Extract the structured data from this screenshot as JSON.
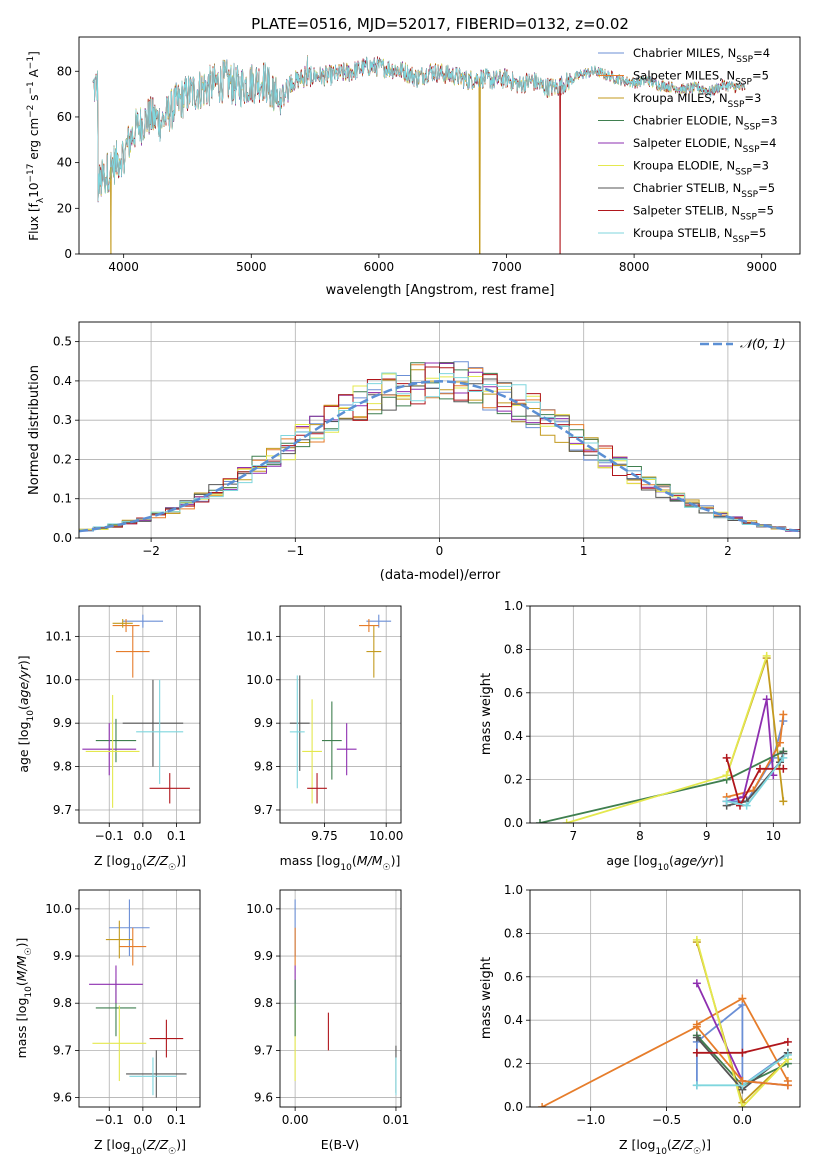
{
  "figure": {
    "title": "PLATE=0516, MJD=52017, FIBERID=0132, z=0.02"
  },
  "colors": {
    "Chabrier MILES": "#6b8fd6",
    "Salpeter MILES": "#e67d2b",
    "Kroupa MILES": "#c39a1e",
    "Chabrier ELODIE": "#3f7f4f",
    "Salpeter ELODIE": "#8e2fb0",
    "Kroupa ELODIE": "#e4e84e",
    "Chabrier STELIB": "#555555",
    "Salpeter STELIB": "#b0161c",
    "Kroupa STELIB": "#7fd6de",
    "normal_curve": "#5b8fd4",
    "grid": "#b0b0b0"
  },
  "chart_data": [
    {
      "id": "spectrum",
      "type": "line",
      "title": "PLATE=0516, MJD=52017, FIBERID=0132, z=0.02",
      "xlabel": "wavelength [Angstrom, rest frame]",
      "ylabel": "Flux [f_λ 10^-17 erg cm^-2 s^-1 A^-1]",
      "xlim": [
        3650,
        9300
      ],
      "ylim": [
        0,
        95
      ],
      "xticks": [
        4000,
        5000,
        6000,
        7000,
        8000,
        9000
      ],
      "yticks": [
        0,
        20,
        40,
        60,
        80
      ],
      "grid": false,
      "legend_position": "top-right",
      "legend": [
        {
          "label": "Chabrier MILES",
          "nssp": "4"
        },
        {
          "label": "Salpeter MILES",
          "nssp": "5"
        },
        {
          "label": "Kroupa MILES",
          "nssp": "3"
        },
        {
          "label": "Chabrier ELODIE",
          "nssp": "3"
        },
        {
          "label": "Salpeter ELODIE",
          "nssp": "4"
        },
        {
          "label": "Kroupa ELODIE",
          "nssp": "3"
        },
        {
          "label": "Chabrier STELIB",
          "nssp": "5"
        },
        {
          "label": "Salpeter STELIB",
          "nssp": "5"
        },
        {
          "label": "Kroupa STELIB",
          "nssp": "5"
        }
      ],
      "continuum": {
        "x": [
          3800,
          3900,
          4000,
          4050,
          4100,
          4200,
          4300,
          4400,
          4500,
          4600,
          4700,
          4800,
          4900,
          5000,
          5100,
          5200,
          5300,
          5400,
          5500,
          5600,
          5700,
          5800,
          5900,
          6000,
          6100,
          6200,
          6300,
          6400,
          6500,
          6600,
          6700,
          6800,
          6900,
          7000,
          7100,
          7200,
          7300,
          7400,
          7500,
          7600,
          7700,
          7800,
          7900,
          8000,
          8100,
          8200,
          8300,
          8400,
          8500,
          8600,
          8700,
          8800
        ],
        "y": [
          30,
          38,
          44,
          50,
          55,
          60,
          58,
          65,
          70,
          72,
          74,
          76,
          73,
          75,
          76,
          68,
          75,
          77,
          78,
          78,
          79,
          80,
          82,
          82,
          81,
          80,
          77,
          80,
          79,
          78,
          76,
          77,
          76,
          77,
          74,
          76,
          73,
          73,
          76,
          79,
          80,
          78,
          76,
          75,
          76,
          74,
          73,
          72,
          73,
          71,
          74,
          73
        ]
      },
      "drops": [
        {
          "x": 3900,
          "series": "Kroupa MILES"
        },
        {
          "x": 6790,
          "series": "Kroupa MILES"
        },
        {
          "x": 7420,
          "series": "Salpeter STELIB"
        }
      ]
    },
    {
      "id": "residuals",
      "type": "bar",
      "xlabel": "(data-model)/error",
      "ylabel": "Normed distribution",
      "xlim": [
        -2.5,
        2.5
      ],
      "ylim": [
        0,
        0.55
      ],
      "xticks": [
        -2,
        -1,
        0,
        1,
        2
      ],
      "yticks": [
        0.0,
        0.1,
        0.2,
        0.3,
        0.4,
        0.5
      ],
      "grid": true,
      "legend_position": "top-right",
      "legend": [
        {
          "label": "𝒩(0, 1)",
          "style": "dashed"
        }
      ],
      "bin_width": 0.1,
      "bin_start": -2.5
    },
    {
      "id": "age-vs-Z",
      "type": "scatter",
      "xlabel": "Z [log10(Z/Z☉)]",
      "ylabel": "age [log10(age/yr)]",
      "xlim": [
        -0.19,
        0.17
      ],
      "ylim": [
        9.67,
        10.17
      ],
      "xticks": [
        -0.1,
        0.0,
        0.1
      ],
      "yticks": [
        9.7,
        9.8,
        9.9,
        10.0,
        10.1
      ],
      "grid": true,
      "points": [
        {
          "series": "Chabrier MILES",
          "x": 0.0,
          "xerr": 0.06,
          "y": 10.135,
          "yerr": 0.015
        },
        {
          "series": "Salpeter MILES",
          "x": -0.05,
          "xerr": 0.04,
          "y": 10.125,
          "yerr": 0.015
        },
        {
          "series": "Kroupa MILES",
          "x": -0.06,
          "xerr": 0.03,
          "y": 10.13,
          "yerr": 0.01
        },
        {
          "series": "Chabrier ELODIE",
          "x": -0.08,
          "xerr": 0.06,
          "y": 9.86,
          "yerr": 0.05
        },
        {
          "series": "Salpeter ELODIE",
          "x": -0.1,
          "xerr": 0.08,
          "y": 9.84,
          "yerr": 0.06
        },
        {
          "series": "Kroupa ELODIE",
          "x": -0.09,
          "xerr": 0.08,
          "y": 9.835,
          "yerr": 0.13
        },
        {
          "series": "Chabrier STELIB",
          "x": 0.03,
          "xerr": 0.09,
          "y": 9.9,
          "yerr": 0.1
        },
        {
          "series": "Salpeter STELIB",
          "x": 0.08,
          "xerr": 0.06,
          "y": 9.75,
          "yerr": 0.035
        },
        {
          "series": "Kroupa STELIB",
          "x": 0.05,
          "xerr": 0.07,
          "y": 9.88,
          "yerr": 0.12
        },
        {
          "series": "Salpeter MILES",
          "x": -0.03,
          "xerr": 0.05,
          "y": 10.065,
          "yerr": 0.06
        }
      ]
    },
    {
      "id": "age-vs-mass",
      "type": "scatter",
      "xlabel": "mass [log10(M/M☉)]",
      "ylabel": "",
      "xlim": [
        9.57,
        10.06
      ],
      "ylim": [
        9.67,
        10.17
      ],
      "xticks": [
        9.75,
        10.0
      ],
      "yticks": [
        9.7,
        9.8,
        9.9,
        10.0,
        10.1
      ],
      "grid": true,
      "points": [
        {
          "series": "Chabrier MILES",
          "x": 9.97,
          "xerr": 0.05,
          "y": 10.135,
          "yerr": 0.015
        },
        {
          "series": "Salpeter MILES",
          "x": 9.93,
          "xerr": 0.04,
          "y": 10.125,
          "yerr": 0.015
        },
        {
          "series": "Kroupa MILES",
          "x": 9.95,
          "xerr": 0.03,
          "y": 10.065,
          "yerr": 0.06
        },
        {
          "series": "Chabrier ELODIE",
          "x": 9.78,
          "xerr": 0.04,
          "y": 9.86,
          "yerr": 0.09
        },
        {
          "series": "Salpeter ELODIE",
          "x": 9.84,
          "xerr": 0.04,
          "y": 9.84,
          "yerr": 0.06
        },
        {
          "series": "Kroupa ELODIE",
          "x": 9.7,
          "xerr": 0.04,
          "y": 9.835,
          "yerr": 0.12
        },
        {
          "series": "Chabrier STELIB",
          "x": 9.65,
          "xerr": 0.04,
          "y": 9.9,
          "yerr": 0.11
        },
        {
          "series": "Salpeter STELIB",
          "x": 9.72,
          "xerr": 0.04,
          "y": 9.75,
          "yerr": 0.035
        },
        {
          "series": "Kroupa STELIB",
          "x": 9.64,
          "xerr": 0.03,
          "y": 9.88,
          "yerr": 0.13
        }
      ]
    },
    {
      "id": "mass-weight-vs-age",
      "type": "line",
      "xlabel": "age [log10(age/yr)]",
      "ylabel": "mass weight",
      "xlim": [
        6.35,
        10.4
      ],
      "ylim": [
        0,
        1.0
      ],
      "xticks": [
        7,
        8,
        9,
        10
      ],
      "yticks": [
        0.0,
        0.2,
        0.4,
        0.6,
        0.8,
        1.0
      ],
      "grid": true,
      "series": [
        {
          "name": "Chabrier MILES",
          "x": [
            9.3,
            9.6,
            10.0,
            10.15
          ],
          "y": [
            0.1,
            0.1,
            0.3,
            0.47
          ]
        },
        {
          "name": "Salpeter MILES",
          "x": [
            9.3,
            9.7,
            10.1,
            10.15
          ],
          "y": [
            0.12,
            0.15,
            0.37,
            0.5
          ]
        },
        {
          "name": "Kroupa MILES",
          "x": [
            9.3,
            9.9,
            10.15
          ],
          "y": [
            0.22,
            0.76,
            0.1
          ]
        },
        {
          "name": "Chabrier ELODIE",
          "x": [
            6.5,
            9.3,
            10.15
          ],
          "y": [
            0.0,
            0.2,
            0.33
          ]
        },
        {
          "name": "Salpeter ELODIE",
          "x": [
            9.3,
            9.55,
            9.9,
            10.0
          ],
          "y": [
            0.1,
            0.12,
            0.57,
            0.22
          ]
        },
        {
          "name": "Kroupa ELODIE",
          "x": [
            6.9,
            9.3,
            9.9
          ],
          "y": [
            0.0,
            0.22,
            0.77
          ]
        },
        {
          "name": "Chabrier STELIB",
          "x": [
            9.3,
            9.6,
            10.1,
            10.15
          ],
          "y": [
            0.08,
            0.1,
            0.28,
            0.32
          ]
        },
        {
          "name": "Salpeter STELIB",
          "x": [
            9.3,
            9.5,
            9.8,
            10.15
          ],
          "y": [
            0.3,
            0.08,
            0.25,
            0.25
          ]
        },
        {
          "name": "Kroupa STELIB",
          "x": [
            9.3,
            9.6,
            10.15
          ],
          "y": [
            0.1,
            0.08,
            0.3
          ]
        }
      ]
    },
    {
      "id": "mass-vs-Z",
      "type": "scatter",
      "xlabel": "Z [log10(Z/Z☉)]",
      "ylabel": "mass [log10(M/M☉)]",
      "xlim": [
        -0.19,
        0.17
      ],
      "ylim": [
        9.58,
        10.04
      ],
      "xticks": [
        -0.1,
        0.0,
        0.1
      ],
      "yticks": [
        9.6,
        9.7,
        9.8,
        9.9,
        10.0
      ],
      "grid": true,
      "points": [
        {
          "series": "Chabrier MILES",
          "x": -0.04,
          "xerr": 0.06,
          "y": 9.96,
          "yerr": 0.06
        },
        {
          "series": "Salpeter MILES",
          "x": -0.03,
          "xerr": 0.04,
          "y": 9.92,
          "yerr": 0.04
        },
        {
          "series": "Kroupa MILES",
          "x": -0.07,
          "xerr": 0.04,
          "y": 9.935,
          "yerr": 0.04
        },
        {
          "series": "Chabrier ELODIE",
          "x": -0.08,
          "xerr": 0.06,
          "y": 9.79,
          "yerr": 0.06
        },
        {
          "series": "Salpeter ELODIE",
          "x": -0.08,
          "xerr": 0.08,
          "y": 9.84,
          "yerr": 0.04
        },
        {
          "series": "Kroupa ELODIE",
          "x": -0.07,
          "xerr": 0.08,
          "y": 9.715,
          "yerr": 0.08
        },
        {
          "series": "Chabrier STELIB",
          "x": 0.04,
          "xerr": 0.09,
          "y": 9.65,
          "yerr": 0.05
        },
        {
          "series": "Salpeter STELIB",
          "x": 0.07,
          "xerr": 0.05,
          "y": 9.725,
          "yerr": 0.04
        },
        {
          "series": "Kroupa STELIB",
          "x": 0.03,
          "xerr": 0.07,
          "y": 9.645,
          "yerr": 0.04
        }
      ]
    },
    {
      "id": "mass-vs-ebv",
      "type": "scatter",
      "xlabel": "E(B-V)",
      "ylabel": "",
      "xlim": [
        -0.0015,
        0.0105
      ],
      "ylim": [
        9.58,
        10.04
      ],
      "xticks": [
        0.0,
        0.01
      ],
      "yticks": [
        9.6,
        9.7,
        9.8,
        9.9,
        10.0
      ],
      "grid": true,
      "points": [
        {
          "series": "Chabrier MILES",
          "x": 0.0,
          "xerr": 0.0,
          "y": 9.96,
          "yerr": 0.06
        },
        {
          "series": "Salpeter MILES",
          "x": 0.0,
          "xerr": 0.0,
          "y": 9.92,
          "yerr": 0.04
        },
        {
          "series": "Salpeter ELODIE",
          "x": 0.0,
          "xerr": 0.0,
          "y": 9.84,
          "yerr": 0.04
        },
        {
          "series": "Kroupa ELODIE",
          "x": 0.0,
          "xerr": 0.0,
          "y": 9.715,
          "yerr": 0.08
        },
        {
          "series": "Chabrier ELODIE",
          "x": 0.0,
          "xerr": 0.0,
          "y": 9.79,
          "yerr": 0.06
        },
        {
          "series": "Salpeter STELIB",
          "x": 0.0033,
          "xerr": 0.0,
          "y": 9.74,
          "yerr": 0.04
        },
        {
          "series": "Chabrier STELIB",
          "x": 0.01,
          "xerr": 0.0,
          "y": 9.66,
          "yerr": 0.05
        },
        {
          "series": "Kroupa STELIB",
          "x": 0.01,
          "xerr": 0.0,
          "y": 9.645,
          "yerr": 0.04
        }
      ]
    },
    {
      "id": "mass-weight-vs-Z",
      "type": "line",
      "xlabel": "Z [log10(Z/Z☉)]",
      "ylabel": "mass weight",
      "xlim": [
        -1.4,
        0.38
      ],
      "ylim": [
        0,
        1.0
      ],
      "xticks": [
        -1.0,
        -0.5,
        0.0
      ],
      "yticks": [
        0.0,
        0.2,
        0.4,
        0.6,
        0.8,
        1.0
      ],
      "grid": true,
      "series": [
        {
          "name": "Chabrier MILES",
          "x": [
            -0.3,
            -0.3,
            0.0,
            0.0,
            0.3
          ],
          "y": [
            0.1,
            0.3,
            0.47,
            0.1,
            0.25
          ]
        },
        {
          "name": "Salpeter MILES",
          "x": [
            -0.3,
            0.0,
            0.3
          ],
          "y": [
            0.38,
            0.5,
            0.12
          ]
        },
        {
          "name": "Kroupa MILES",
          "x": [
            -0.3,
            0.0,
            0.3
          ],
          "y": [
            0.76,
            0.02,
            0.22
          ]
        },
        {
          "name": "Chabrier ELODIE",
          "x": [
            -0.3,
            0.0,
            0.3
          ],
          "y": [
            0.33,
            0.1,
            0.2
          ]
        },
        {
          "name": "Salpeter ELODIE",
          "x": [
            -0.3,
            0.0,
            0.3
          ],
          "y": [
            0.57,
            0.12,
            0.1
          ]
        },
        {
          "name": "Kroupa ELODIE",
          "x": [
            -0.3,
            0.0,
            0.3
          ],
          "y": [
            0.77,
            0.0,
            0.22
          ]
        },
        {
          "name": "Chabrier STELIB",
          "x": [
            -0.3,
            0.0,
            0.3
          ],
          "y": [
            0.32,
            0.08,
            0.25
          ]
        },
        {
          "name": "Salpeter STELIB",
          "x": [
            -0.3,
            0.0,
            0.3
          ],
          "y": [
            0.25,
            0.25,
            0.3
          ]
        },
        {
          "name": "Kroupa STELIB",
          "x": [
            -0.3,
            0.0,
            0.3
          ],
          "y": [
            0.1,
            0.1,
            0.24
          ]
        },
        {
          "name": "Salpeter MILES",
          "x": [
            -1.32,
            -0.3,
            0.0,
            0.3
          ],
          "y": [
            0.0,
            0.37,
            0.12,
            0.1
          ]
        }
      ]
    }
  ]
}
